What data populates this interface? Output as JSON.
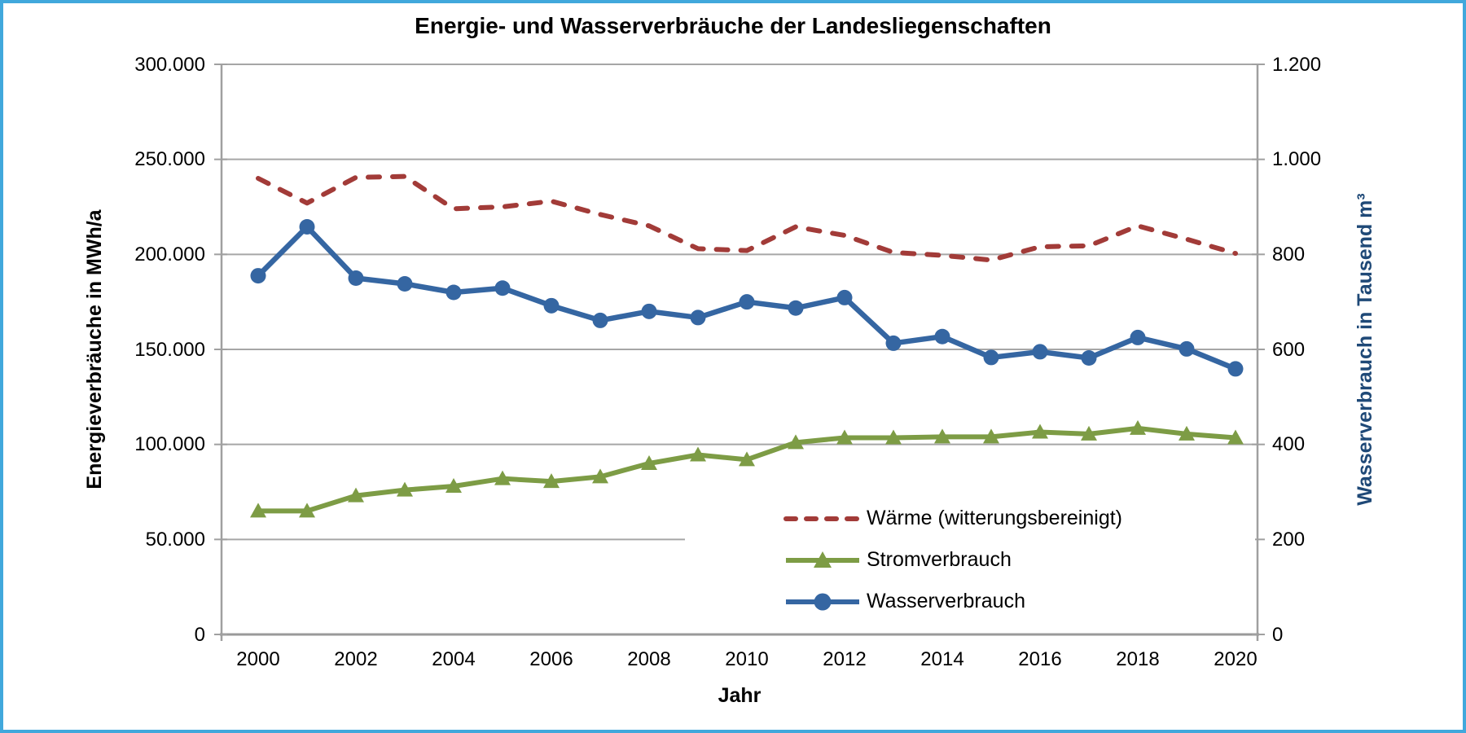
{
  "chart_data": {
    "type": "line",
    "title": "Energie- und Wasserverbräuche der Landesliegenschaften",
    "xlabel": "Jahr",
    "x": [
      2000,
      2001,
      2002,
      2003,
      2004,
      2005,
      2006,
      2007,
      2008,
      2009,
      2010,
      2011,
      2012,
      2013,
      2014,
      2015,
      2016,
      2017,
      2018,
      2019,
      2020
    ],
    "x_tick_labels": [
      "2000",
      "2002",
      "2004",
      "2006",
      "2008",
      "2010",
      "2012",
      "2014",
      "2016",
      "2018",
      "2020"
    ],
    "y_left": {
      "label": "Energieverbräuche in MWh/a",
      "min": 0,
      "max": 300000,
      "tick_labels": [
        "0",
        "50.000",
        "100.000",
        "150.000",
        "200.000",
        "250.000",
        "300.000"
      ]
    },
    "y_right": {
      "label": "Wasserverbrauch in Tausend m³",
      "min": 0,
      "max": 1200,
      "tick_labels": [
        "0",
        "200",
        "400",
        "600",
        "800",
        "1.000",
        "1.200"
      ]
    },
    "grid": "horizontal",
    "legend_position": "inside-bottom-right",
    "series": [
      {
        "name": "Wärme (witterungsbereinigt)",
        "axis": "left",
        "color": "#a23b38",
        "line_style": "dashed",
        "marker": "none",
        "values": [
          240000,
          227000,
          240500,
          241000,
          224000,
          225000,
          228000,
          221000,
          215000,
          203000,
          202000,
          214500,
          210000,
          201000,
          199500,
          197000,
          204000,
          204500,
          215000,
          208000,
          200500
        ]
      },
      {
        "name": "Stromverbrauch",
        "axis": "left",
        "color": "#7d9c45",
        "line_style": "solid",
        "marker": "triangle",
        "values": [
          65000,
          65000,
          73000,
          76000,
          78000,
          82000,
          80500,
          83000,
          90000,
          94500,
          92000,
          101000,
          103500,
          103500,
          104000,
          104000,
          106500,
          105500,
          108500,
          105500,
          103500
        ]
      },
      {
        "name": "Wasserverbrauch",
        "axis": "right",
        "color": "#3566a2",
        "line_style": "solid",
        "marker": "circle",
        "values": [
          755,
          858,
          750,
          738,
          720,
          729,
          692,
          661,
          680,
          667,
          700,
          687,
          709,
          613,
          627,
          583,
          595,
          582,
          625,
          601,
          559
        ]
      }
    ],
    "colors": {
      "gridline": "#a6a6a6",
      "axis_line": "#a0a0a0",
      "right_axis_title": "#1f4977",
      "frame_border": "#41a8dc"
    }
  }
}
